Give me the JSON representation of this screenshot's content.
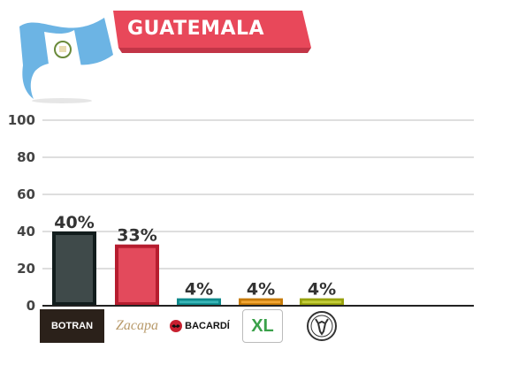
{
  "header": {
    "country": "GUATEMALA",
    "flag_colors": [
      "#6cb4e4",
      "#ffffff",
      "#6cb4e4"
    ],
    "banner_color": "#e8485a"
  },
  "chart_data": {
    "type": "bar",
    "categories": [
      "BOTRAN",
      "Zacapa",
      "BACARDÍ",
      "XL",
      "stag-logo"
    ],
    "values": [
      40,
      33,
      4,
      4,
      4
    ],
    "data_labels": [
      "40%",
      "33%",
      "4%",
      "4%",
      "4%"
    ],
    "bar_colors": [
      "#3f4a4a",
      "#e34a5c",
      "#3ab6b8",
      "#f3a735",
      "#c4ce3a"
    ],
    "ylim": [
      0,
      100
    ],
    "yticks": [
      "0",
      "20",
      "40",
      "60",
      "80",
      "100"
    ],
    "grid": true,
    "title": "",
    "xlabel": "",
    "ylabel": ""
  },
  "logos": {
    "botran": "BOTRAN",
    "zacapa": "Zacapa",
    "bacardi": "BACARDÍ",
    "xl": "XL",
    "stag": "stag-icon"
  }
}
